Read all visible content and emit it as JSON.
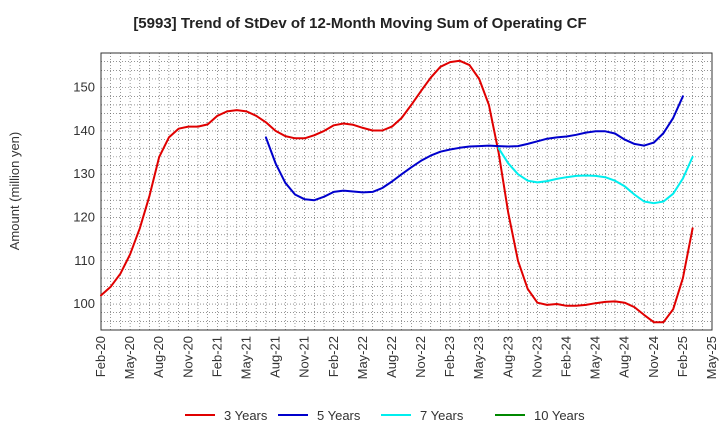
{
  "chart_data": {
    "type": "line",
    "title": "[5993]  Trend of StDev of 12-Month Moving Sum of Operating CF",
    "xlabel": "",
    "ylabel": "Amount (million yen)",
    "ylim": [
      94,
      158
    ],
    "yticks": [
      100,
      110,
      120,
      130,
      140,
      150
    ],
    "xlim": [
      "2020-02",
      "2025-05"
    ],
    "xticks": [
      "Feb-20",
      "May-20",
      "Aug-20",
      "Nov-20",
      "Feb-21",
      "May-21",
      "Aug-21",
      "Nov-21",
      "Feb-22",
      "May-22",
      "Aug-22",
      "Nov-22",
      "Feb-23",
      "May-23",
      "Aug-23",
      "Nov-23",
      "Feb-24",
      "May-24",
      "Aug-24",
      "Nov-24",
      "Feb-25",
      "May-25"
    ],
    "grid": true,
    "legend_position": "bottom",
    "series": [
      {
        "name": "3 Years",
        "color": "#e00000",
        "start": "2020-02",
        "values": [
          102,
          104,
          107,
          111.5,
          117.5,
          125,
          134,
          138.5,
          140.5,
          141,
          141,
          141.5,
          143.5,
          144.5,
          144.8,
          144.5,
          143.5,
          142,
          140,
          138.8,
          138.3,
          138.3,
          139,
          140,
          141.3,
          141.7,
          141.4,
          140.7,
          140.1,
          140.1,
          141,
          143,
          146,
          149.2,
          152.3,
          154.8,
          155.9,
          156.2,
          155.2,
          152,
          146,
          135,
          121,
          110,
          103.5,
          100.3,
          99.8,
          100,
          99.6,
          99.6,
          99.8,
          100.2,
          100.5,
          100.6,
          100.3,
          99.3,
          97.5,
          95.8,
          95.8,
          98.8,
          106,
          117.5
        ]
      },
      {
        "name": "5 Years",
        "color": "#0000cc",
        "start": "2021-07",
        "values": [
          138.5,
          132.5,
          128,
          125.3,
          124.2,
          124,
          124.8,
          125.9,
          126.2,
          126,
          125.8,
          125.9,
          126.8,
          128.3,
          130,
          131.6,
          133.1,
          134.3,
          135.2,
          135.7,
          136.1,
          136.4,
          136.5,
          136.6,
          136.5,
          136.4,
          136.5,
          137,
          137.6,
          138.2,
          138.5,
          138.7,
          139.1,
          139.6,
          139.9,
          139.9,
          139.4,
          138,
          137,
          136.6,
          137.3,
          139.5,
          143,
          148
        ]
      },
      {
        "name": "7 Years",
        "color": "#00eeee",
        "start": "2023-07",
        "values": [
          136,
          132.5,
          130,
          128.5,
          128.1,
          128.4,
          128.9,
          129.3,
          129.6,
          129.7,
          129.6,
          129.3,
          128.5,
          127.2,
          125.3,
          123.7,
          123.3,
          123.7,
          125.5,
          129,
          134
        ]
      },
      {
        "name": "10 Years",
        "color": "#008800",
        "start": "2025-02",
        "values": []
      }
    ]
  }
}
